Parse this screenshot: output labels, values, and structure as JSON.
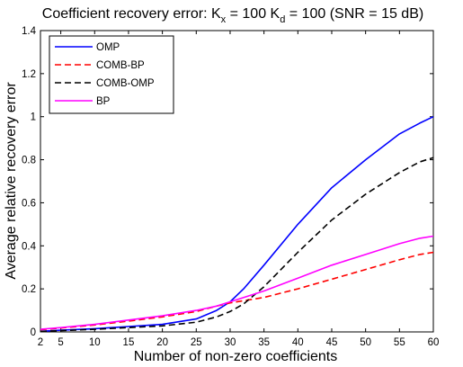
{
  "chart_data": {
    "type": "line",
    "title": {
      "prefix": "Coefficient recovery error: K",
      "sub1": "x",
      "mid": " = 100 K",
      "sub2": "d",
      "suffix": " = 100 (SNR = 15 dB)"
    },
    "xlabel": "Number of non-zero coefficients",
    "ylabel": "Average relative recovery error",
    "xlim": [
      2,
      60
    ],
    "ylim": [
      0,
      1.4
    ],
    "xticks": [
      2,
      5,
      10,
      15,
      20,
      25,
      30,
      35,
      40,
      45,
      50,
      55,
      60
    ],
    "yticks": [
      0,
      0.2,
      0.4,
      0.6,
      0.8,
      1,
      1.2,
      1.4
    ],
    "ytick_labels": [
      "0",
      "0.2",
      "0.4",
      "0.6",
      "0.8",
      "1",
      "1.2",
      "1.4"
    ],
    "grid": false,
    "legend_position": "top-left",
    "x": [
      2,
      5,
      10,
      15,
      20,
      25,
      28,
      30,
      32,
      35,
      40,
      45,
      50,
      55,
      58,
      60
    ],
    "series": [
      {
        "name": "OMP",
        "color": "#0000ff",
        "dash": "solid",
        "values": [
          0.003,
          0.008,
          0.015,
          0.025,
          0.035,
          0.06,
          0.1,
          0.14,
          0.2,
          0.31,
          0.5,
          0.67,
          0.8,
          0.92,
          0.97,
          1.0
        ]
      },
      {
        "name": "COMB-BP",
        "color": "#ff0000",
        "dash": "dashed",
        "values": [
          0.01,
          0.018,
          0.032,
          0.05,
          0.07,
          0.095,
          0.12,
          0.135,
          0.145,
          0.16,
          0.2,
          0.245,
          0.29,
          0.335,
          0.36,
          0.37
        ]
      },
      {
        "name": "COMB-OMP",
        "color": "#000000",
        "dash": "dashed",
        "values": [
          0.002,
          0.006,
          0.012,
          0.02,
          0.028,
          0.045,
          0.07,
          0.095,
          0.13,
          0.21,
          0.37,
          0.52,
          0.64,
          0.74,
          0.79,
          0.81
        ]
      },
      {
        "name": "BP",
        "color": "#ff00ff",
        "dash": "solid",
        "values": [
          0.012,
          0.02,
          0.035,
          0.055,
          0.075,
          0.1,
          0.12,
          0.14,
          0.16,
          0.19,
          0.25,
          0.31,
          0.36,
          0.41,
          0.435,
          0.445
        ]
      }
    ]
  }
}
